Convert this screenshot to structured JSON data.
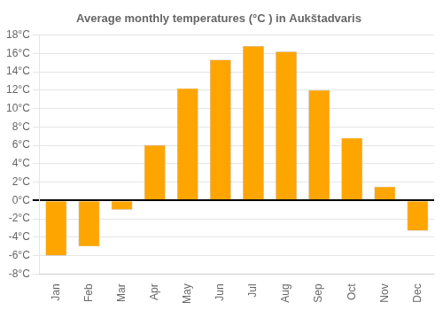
{
  "chart_data": {
    "type": "bar",
    "title": "Average monthly temperatures (°C ) in Aukštadvaris",
    "categories": [
      "Jan",
      "Feb",
      "Mar",
      "Apr",
      "May",
      "Jun",
      "Jul",
      "Aug",
      "Sep",
      "Oct",
      "Nov",
      "Dec"
    ],
    "values": [
      -6.0,
      -5.0,
      -1.0,
      6.0,
      12.2,
      15.3,
      16.8,
      16.2,
      12.0,
      6.8,
      1.5,
      -3.3
    ],
    "color": "#FFA500",
    "ylim": [
      -8,
      18
    ],
    "yticks": [
      {
        "value": -8,
        "label": "-8°C"
      },
      {
        "value": -6,
        "label": "-6°C"
      },
      {
        "value": -4,
        "label": "-4°C"
      },
      {
        "value": -2,
        "label": "-2°C"
      },
      {
        "value": 0,
        "label": "0°C"
      },
      {
        "value": 2,
        "label": "2°C"
      },
      {
        "value": 4,
        "label": "4°C"
      },
      {
        "value": 6,
        "label": "6°C"
      },
      {
        "value": 8,
        "label": "8°C"
      },
      {
        "value": 10,
        "label": "10°C"
      },
      {
        "value": 12,
        "label": "12°C"
      },
      {
        "value": 14,
        "label": "14°C"
      },
      {
        "value": 16,
        "label": "16°C"
      },
      {
        "value": 18,
        "label": "18°C"
      }
    ],
    "grid": true
  }
}
